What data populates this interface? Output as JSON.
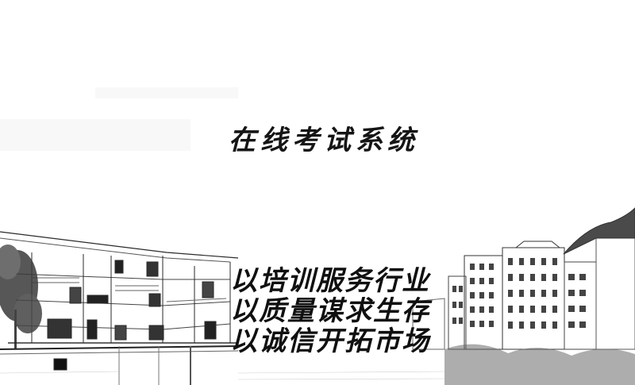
{
  "title": "在线考试系统",
  "motto": {
    "line1": "以培训服务行业",
    "line2": "以质量谋求生存",
    "line3": "以诚信开拓市场"
  }
}
